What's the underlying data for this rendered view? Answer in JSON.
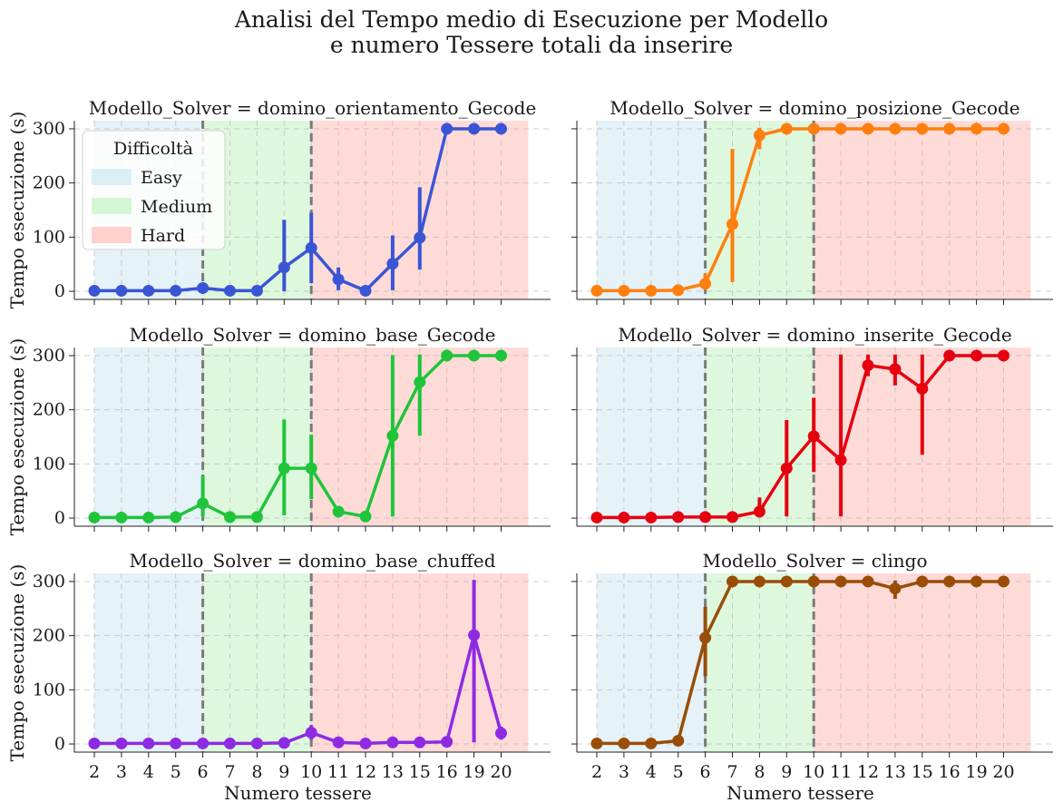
{
  "title_lines": [
    "Analisi del Tempo medio di Esecuzione per Modello",
    "e numero Tessere totali da inserire"
  ],
  "chart_data": {
    "type": "line",
    "categories": [
      "2",
      "3",
      "4",
      "5",
      "6",
      "7",
      "8",
      "9",
      "10",
      "11",
      "12",
      "13",
      "15",
      "16",
      "19",
      "20"
    ],
    "xlabel": "Numero tessere",
    "ylabel": "Tempo esecuzione (s)",
    "ylim": [
      -15,
      315
    ],
    "yticks": [
      0,
      100,
      200,
      300
    ],
    "grid": true,
    "difficulty_bands": [
      {
        "label": "Easy",
        "from": "2",
        "to": "6",
        "color": "#cfe8f3"
      },
      {
        "label": "Medium",
        "from": "6",
        "to": "10",
        "color": "#c2f2c2"
      },
      {
        "label": "Hard",
        "from": "10",
        "to": "20",
        "color": "#ffbdb8"
      }
    ],
    "threshold_lines": [
      "6",
      "10"
    ],
    "legend": {
      "title": "Difficoltà",
      "position": "upper-left of first panel",
      "entries": [
        "Easy",
        "Medium",
        "Hard"
      ]
    },
    "panels": [
      {
        "title": "Modello_Solver = domino_orientamento_Gecode",
        "color": "#3a55d4",
        "values": [
          1,
          1,
          1,
          1,
          6,
          1,
          1,
          44,
          80,
          22,
          1,
          51,
          99,
          300,
          300,
          300
        ],
        "err_low": [
          1,
          1,
          1,
          1,
          3,
          1,
          1,
          0,
          15,
          2,
          0,
          2,
          40,
          300,
          300,
          300
        ],
        "err_high": [
          1,
          1,
          1,
          1,
          9,
          1,
          1,
          132,
          145,
          44,
          2,
          103,
          192,
          300,
          300,
          300
        ]
      },
      {
        "title": "Modello_Solver = domino_posizione_Gecode",
        "color": "#ff7f0e",
        "values": [
          1,
          1,
          1,
          2,
          14,
          124,
          288,
          300,
          300,
          300,
          300,
          300,
          300,
          300,
          300,
          300
        ],
        "err_low": [
          1,
          1,
          1,
          1,
          3,
          17,
          262,
          300,
          300,
          300,
          300,
          300,
          300,
          300,
          300,
          300
        ],
        "err_high": [
          1,
          1,
          1,
          3,
          33,
          263,
          302,
          300,
          300,
          300,
          300,
          300,
          300,
          300,
          300,
          300
        ]
      },
      {
        "title": "Modello_Solver = domino_base_Gecode",
        "color": "#1fc43a",
        "values": [
          1,
          1,
          1,
          2,
          27,
          2,
          2,
          92,
          92,
          12,
          3,
          152,
          251,
          300,
          300,
          300
        ],
        "err_low": [
          1,
          1,
          1,
          1,
          3,
          1,
          1,
          5,
          35,
          8,
          2,
          3,
          152,
          300,
          300,
          300
        ],
        "err_high": [
          1,
          1,
          1,
          3,
          78,
          3,
          3,
          182,
          154,
          19,
          4,
          301,
          302,
          300,
          300,
          300
        ]
      },
      {
        "title": "Modello_Solver = domino_inserite_Gecode",
        "color": "#e6000f",
        "values": [
          1,
          1,
          1,
          2,
          2,
          2,
          12,
          92,
          151,
          107,
          282,
          275,
          239,
          300,
          300,
          300
        ],
        "err_low": [
          1,
          1,
          1,
          1,
          1,
          1,
          3,
          3,
          85,
          3,
          262,
          245,
          117,
          300,
          300,
          300
        ],
        "err_high": [
          1,
          1,
          1,
          3,
          3,
          3,
          38,
          181,
          222,
          302,
          302,
          302,
          302,
          300,
          300,
          300
        ]
      },
      {
        "title": "Modello_Solver = domino_base_chuffed",
        "color": "#8e2be2",
        "values": [
          1,
          1,
          1,
          1,
          1,
          1,
          1,
          2,
          21,
          3,
          1,
          3,
          3,
          4,
          201,
          20
        ],
        "err_low": [
          1,
          1,
          1,
          1,
          1,
          1,
          1,
          1,
          8,
          2,
          1,
          2,
          2,
          2,
          3,
          8
        ],
        "err_high": [
          1,
          1,
          1,
          1,
          1,
          1,
          1,
          3,
          35,
          5,
          2,
          4,
          5,
          7,
          303,
          32
        ]
      },
      {
        "title": "Modello_Solver = clingo",
        "color": "#9a4d07",
        "values": [
          1,
          1,
          1,
          6,
          196,
          300,
          300,
          300,
          300,
          300,
          300,
          287,
          300,
          300,
          300,
          300
        ],
        "err_low": [
          1,
          1,
          1,
          2,
          125,
          300,
          300,
          300,
          300,
          300,
          300,
          268,
          300,
          300,
          300,
          300
        ],
        "err_high": [
          1,
          1,
          1,
          10,
          253,
          300,
          300,
          300,
          300,
          300,
          300,
          302,
          300,
          300,
          300,
          300
        ]
      }
    ]
  }
}
